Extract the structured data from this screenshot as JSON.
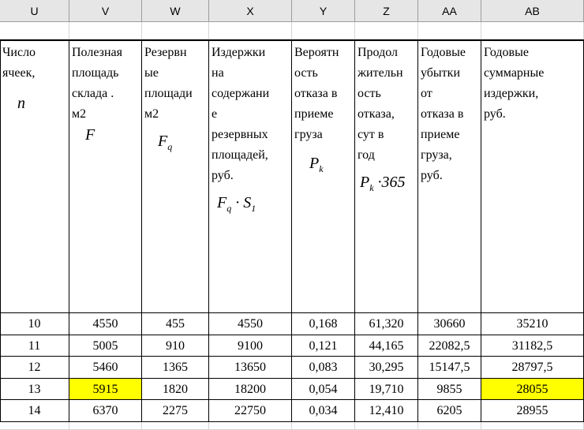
{
  "column_headers": [
    "U",
    "V",
    "W",
    "X",
    "Y",
    "Z",
    "AA",
    "AB"
  ],
  "table": {
    "header": [
      {
        "lines": [
          "Число",
          "ячеек,"
        ],
        "formula": [
          {
            "t": "n"
          }
        ]
      },
      {
        "lines": [
          "Полезная",
          "площадь",
          "склада .",
          "м2"
        ],
        "formula": [
          {
            "t": "F"
          }
        ]
      },
      {
        "lines": [
          "Резервн",
          "ые",
          "площади",
          "м2"
        ],
        "formula": [
          {
            "t": "F",
            "sub": "q"
          }
        ]
      },
      {
        "lines": [
          "Издержки",
          "на",
          "содержани",
          "е",
          "резервных",
          "площадей,",
          "руб."
        ],
        "formula": [
          {
            "t": "F",
            "sub": "q"
          },
          {
            "t": " · "
          },
          {
            "t": "S",
            "sub": "1"
          }
        ]
      },
      {
        "lines": [
          "Вероятн",
          "ость",
          "отказа в",
          "приеме",
          "груза"
        ],
        "formula": [
          {
            "t": "P",
            "sub": "k"
          }
        ]
      },
      {
        "lines": [
          "Продол",
          "жительн",
          "ость",
          "отказа,",
          "сут в",
          "год"
        ],
        "formula": [
          {
            "t": "P",
            "sub": "k"
          },
          {
            "t": " ·365"
          }
        ]
      },
      {
        "lines": [
          "Годовые",
          "убытки",
          "от",
          "отказа в",
          "приеме",
          "груза,",
          "руб."
        ]
      },
      {
        "lines": [
          "Годовые",
          "суммарные",
          "издержки,",
          "руб."
        ]
      }
    ],
    "rows": [
      [
        "10",
        "4550",
        "455",
        "4550",
        "0,168",
        "61,320",
        "30660",
        "35210"
      ],
      [
        "11",
        "5005",
        "910",
        "9100",
        "0,121",
        "44,165",
        "22082,5",
        "31182,5"
      ],
      [
        "12",
        "5460",
        "1365",
        "13650",
        "0,083",
        "30,295",
        "15147,5",
        "28797,5"
      ],
      [
        "13",
        "5915",
        "1820",
        "18200",
        "0,054",
        "19,710",
        "9855",
        "28055"
      ],
      [
        "14",
        "6370",
        "2275",
        "22750",
        "0,034",
        "12,410",
        "6205",
        "28955"
      ]
    ],
    "highlight_color": "#ffff00",
    "highlighted_cells": [
      [
        3,
        1
      ],
      [
        3,
        7
      ]
    ]
  }
}
